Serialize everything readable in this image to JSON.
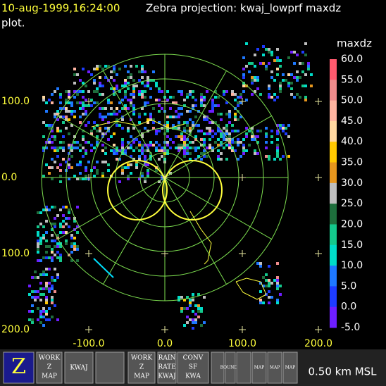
{
  "header": {
    "timestamp": "10-aug-1999,16:24:00",
    "title": "Zebra projection: kwaj_lowprf maxdz",
    "title_cont": "plot."
  },
  "colorbar": {
    "label": "maxdz",
    "ticks": [
      "60.0",
      "55.0",
      "50.0",
      "45.0",
      "40.0",
      "35.0",
      "30.0",
      "25.0",
      "20.0",
      "15.0",
      "10.0",
      "5.0",
      "0.0",
      "-5.0"
    ],
    "colors": [
      "#ff5a6e",
      "#f08c8c",
      "#ffb4a0",
      "#ffd7a0",
      "#ffc800",
      "#e6961e",
      "#bebebe",
      "#1e6e3c",
      "#14c88c",
      "#00dcc8",
      "#1e78ff",
      "#1e3cff",
      "#6e1eff"
    ]
  },
  "axes": {
    "y_labels": [
      "100.0",
      "0.0",
      "100.0",
      "200.0"
    ],
    "x_labels": [
      "-100.0",
      "0.0",
      "100.0",
      "200.0"
    ]
  },
  "toolbar": {
    "icons": [
      [
        "Z"
      ],
      [
        "WORK",
        "Z",
        "MAP"
      ],
      [
        "KWAJ"
      ],
      [
        ""
      ],
      [
        "WORK",
        "Z",
        "MAP"
      ],
      [
        "RAIN",
        "RATE",
        "KWAJ"
      ],
      [
        "CONV",
        "SF",
        "KWA"
      ],
      [
        ""
      ],
      [
        "BOUNDS"
      ],
      [
        ""
      ],
      [
        "MAP"
      ],
      [
        "MAP"
      ],
      [
        "MAP"
      ]
    ],
    "status": "0.50 km MSL"
  }
}
